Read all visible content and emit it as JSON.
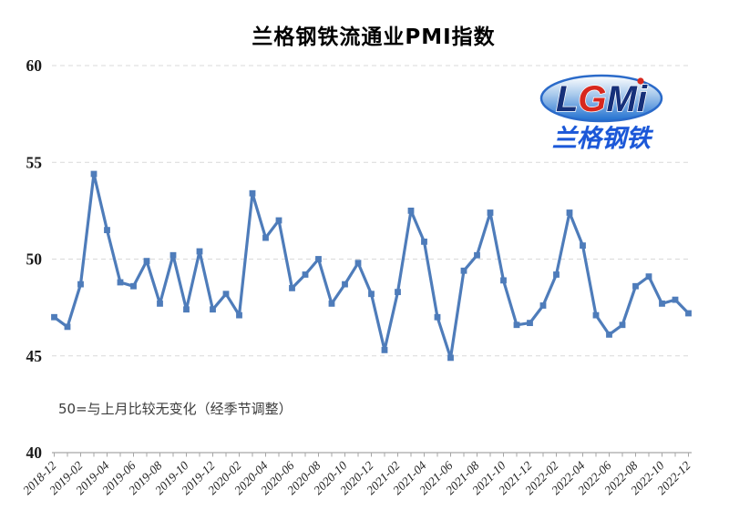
{
  "chart_data": {
    "type": "line",
    "title": "兰格钢铁流通业PMI指数",
    "annotation": "50=与上月比较无变化（经季节调整）",
    "ylim": [
      40,
      60
    ],
    "yticks": [
      40,
      45,
      50,
      55,
      60
    ],
    "grid": "horizontal dashed, light gray",
    "legend_position": "none",
    "line_color": "#4e7cba",
    "x_label_interval": 2,
    "x": [
      "2018-12",
      "2019-01",
      "2019-02",
      "2019-03",
      "2019-04",
      "2019-05",
      "2019-06",
      "2019-07",
      "2019-08",
      "2019-09",
      "2019-10",
      "2019-11",
      "2019-12",
      "2020-01",
      "2020-02",
      "2020-03",
      "2020-04",
      "2020-05",
      "2020-06",
      "2020-07",
      "2020-08",
      "2020-09",
      "2020-10",
      "2020-11",
      "2020-12",
      "2021-01",
      "2021-02",
      "2021-03",
      "2021-04",
      "2021-05",
      "2021-06",
      "2021-07",
      "2021-08",
      "2021-09",
      "2021-10",
      "2021-11",
      "2021-12",
      "2022-01",
      "2022-02",
      "2022-03",
      "2022-04",
      "2022-05",
      "2022-06",
      "2022-07",
      "2022-08",
      "2022-09",
      "2022-10",
      "2022-11",
      "2022-12"
    ],
    "values": [
      47.0,
      46.5,
      48.7,
      54.4,
      51.5,
      48.8,
      48.6,
      49.9,
      47.7,
      50.2,
      47.4,
      50.4,
      47.4,
      48.2,
      47.1,
      53.4,
      51.1,
      52.0,
      48.5,
      49.2,
      50.0,
      47.7,
      48.7,
      49.8,
      48.2,
      45.3,
      48.3,
      52.5,
      50.9,
      47.0,
      44.9,
      49.4,
      50.2,
      52.4,
      48.9,
      46.6,
      46.7,
      47.6,
      49.2,
      52.4,
      50.7,
      47.1,
      46.1,
      46.6,
      48.6,
      49.1,
      47.7,
      47.9,
      47.2
    ]
  },
  "logo": {
    "letters": [
      {
        "ch": "L",
        "color": "#16307a"
      },
      {
        "ch": "G",
        "color": "#d8281e"
      },
      {
        "ch": "M",
        "color": "#16307a"
      },
      {
        "ch": "i",
        "color": "#16307a",
        "dot_color": "#d8281e"
      }
    ],
    "caption": "兰格钢铁",
    "caption_color": "#1b57d8",
    "ellipse_color": "#2a6ac9"
  }
}
